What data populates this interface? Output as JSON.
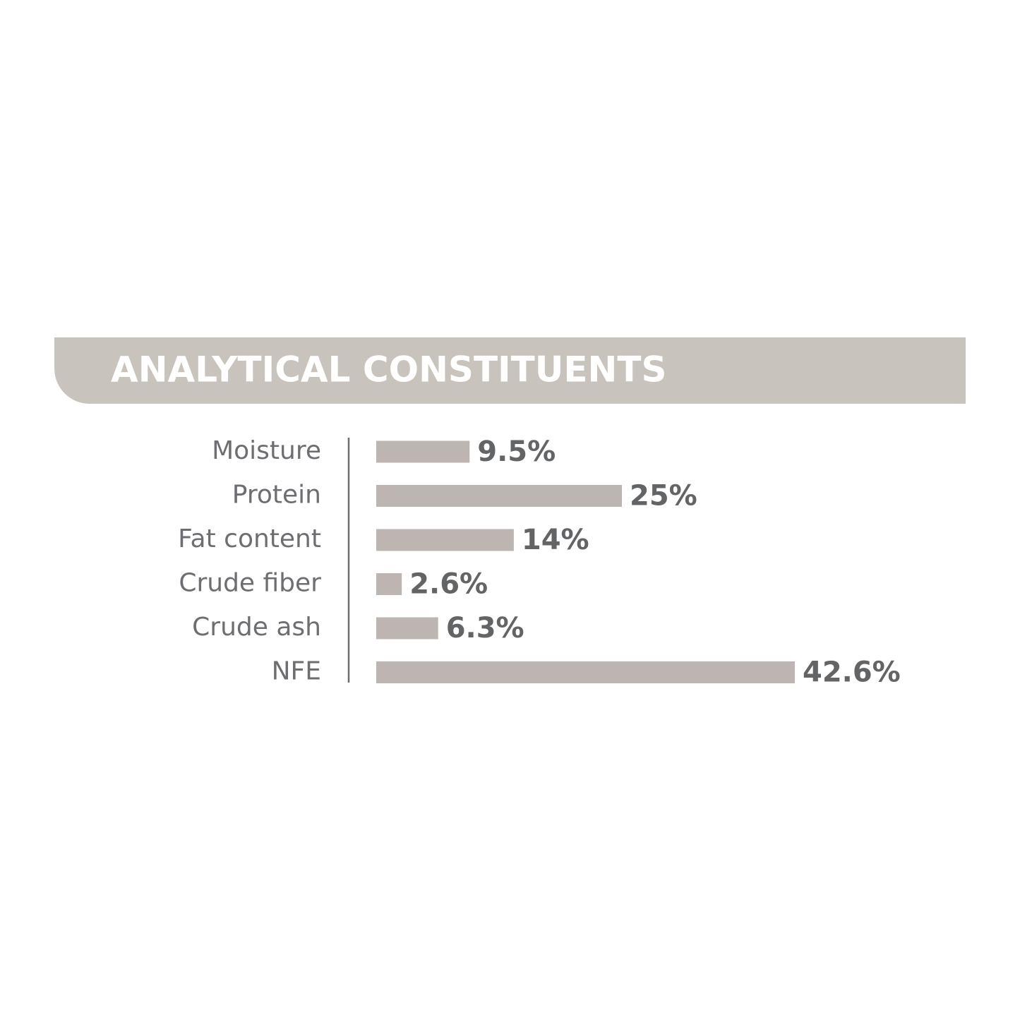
{
  "chart_data": {
    "type": "bar",
    "orientation": "horizontal",
    "title": "ANALYTICAL CONSTITUENTS",
    "categories": [
      "Moisture",
      "Protein",
      "Fat content",
      "Crude fiber",
      "Crude ash",
      "NFE"
    ],
    "values": [
      9.5,
      25,
      14,
      2.6,
      6.3,
      42.6
    ],
    "value_labels": [
      "9.5%",
      "25%",
      "14%",
      "2.6%",
      "6.3%",
      "42.6%"
    ],
    "color": "#bdb5b1"
  }
}
